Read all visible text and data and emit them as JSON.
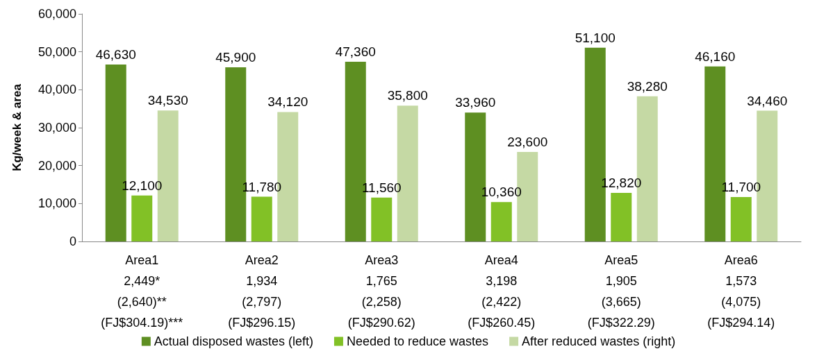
{
  "chart_data": {
    "type": "bar",
    "ylabel": "Kg/week & area",
    "categories": [
      "Area1\n2,449*\n(2,640)**\n(FJ$304.19)***",
      "Area2\n1,934\n(2,797)\n(FJ$296.15)",
      "Area3\n1,765\n(2,258)\n(FJ$290.62)",
      "Area4\n3,198\n(2,422)\n(FJ$260.45)",
      "Area5\n1,905\n(3,665)\n(FJ$322.29)",
      "Area6\n1,573\n(4,075)\n(FJ$294.14)"
    ],
    "series": [
      {
        "name": "Actual disposed wastes (left)",
        "color": "#5e8f22",
        "values": [
          46630,
          45900,
          47360,
          33960,
          51100,
          46160
        ],
        "value_labels": [
          "46,630",
          "45,900",
          "47,360",
          "33,960",
          "51,100",
          "46,160"
        ]
      },
      {
        "name": "Needed to reduce wastes",
        "color": "#82c126",
        "values": [
          12100,
          11780,
          11560,
          10360,
          12820,
          11700
        ],
        "value_labels": [
          "12,100",
          "11,780",
          "11,560",
          "10,360",
          "12,820",
          "11,700"
        ]
      },
      {
        "name": "After reduced wastes (right)",
        "color": "#c5d9a4",
        "values": [
          34530,
          34120,
          35800,
          23600,
          38280,
          34460
        ],
        "value_labels": [
          "34,530",
          "34,120",
          "35,800",
          "23,600",
          "38,280",
          "34,460"
        ]
      }
    ],
    "ylim": [
      0,
      60000
    ],
    "yticks": [
      {
        "value": 0,
        "label": "0"
      },
      {
        "value": 10000,
        "label": "10,000"
      },
      {
        "value": 20000,
        "label": "20,000"
      },
      {
        "value": 30000,
        "label": "30,000"
      },
      {
        "value": 40000,
        "label": "40,000"
      },
      {
        "value": 50000,
        "label": "50,000"
      },
      {
        "value": 60000,
        "label": "60,000"
      }
    ],
    "grid": false,
    "legend": "bottom"
  }
}
